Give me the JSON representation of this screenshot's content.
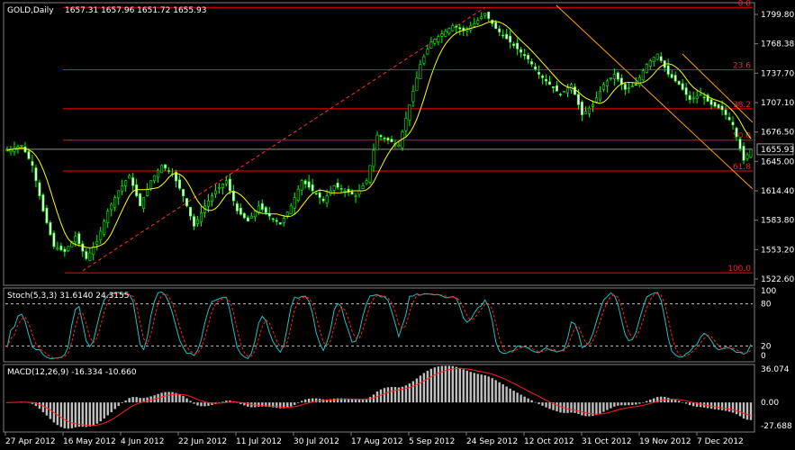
{
  "chart_data": [
    {
      "type": "candlestick",
      "title": "GOLD,Daily",
      "ohlc_readout": "1657.31 1657.96 1651.72 1655.93",
      "last_price": "1655.93",
      "y_ticks": [
        "1799.80",
        "1768.38",
        "1737.70",
        "1707.10",
        "1676.50",
        "1645.00",
        "1614.40",
        "1583.80",
        "1553.20",
        "1522.60"
      ],
      "ylim": [
        1522.6,
        1799.8
      ],
      "x_ticks": [
        "27 Apr 2012",
        "16 May 2012",
        "4 Jun 2012",
        "22 Jun 2012",
        "11 Jul 2012",
        "30 Jul 2012",
        "17 Aug 2012",
        "5 Sep 2012",
        "24 Sep 2012",
        "12 Oct 2012",
        "31 Oct 2012",
        "19 Nov 2012",
        "7 Dec 2012"
      ],
      "fib_levels": [
        {
          "label": "0.0",
          "value": 1796.0
        },
        {
          "label": "23.6",
          "value": 1734.5
        },
        {
          "label": "38.2",
          "value": 1696.0
        },
        {
          "label": "50.0",
          "value": 1665.0
        },
        {
          "label": "61.8",
          "value": 1634.5
        },
        {
          "label": "100.0",
          "value": 1534.0
        }
      ],
      "close_keypoints": [
        [
          0,
          1655
        ],
        [
          4,
          1660
        ],
        [
          7,
          1640
        ],
        [
          10,
          1595
        ],
        [
          13,
          1560
        ],
        [
          16,
          1555
        ],
        [
          19,
          1570
        ],
        [
          22,
          1548
        ],
        [
          25,
          1565
        ],
        [
          28,
          1595
        ],
        [
          31,
          1615
        ],
        [
          34,
          1630
        ],
        [
          37,
          1600
        ],
        [
          40,
          1625
        ],
        [
          43,
          1640
        ],
        [
          46,
          1632
        ],
        [
          49,
          1610
        ],
        [
          52,
          1580
        ],
        [
          55,
          1600
        ],
        [
          58,
          1615
        ],
        [
          61,
          1625
        ],
        [
          64,
          1595
        ],
        [
          67,
          1585
        ],
        [
          70,
          1600
        ],
        [
          73,
          1590
        ],
        [
          76,
          1582
        ],
        [
          79,
          1600
        ],
        [
          82,
          1625
        ],
        [
          85,
          1615
        ],
        [
          88,
          1605
        ],
        [
          91,
          1620
        ],
        [
          94,
          1615
        ],
        [
          97,
          1610
        ],
        [
          100,
          1625
        ],
        [
          103,
          1670
        ],
        [
          106,
          1665
        ],
        [
          109,
          1660
        ],
        [
          112,
          1700
        ],
        [
          115,
          1740
        ],
        [
          118,
          1762
        ],
        [
          121,
          1770
        ],
        [
          124,
          1778
        ],
        [
          127,
          1773
        ],
        [
          130,
          1780
        ],
        [
          133,
          1790
        ],
        [
          136,
          1775
        ],
        [
          139,
          1765
        ],
        [
          142,
          1755
        ],
        [
          145,
          1745
        ],
        [
          148,
          1730
        ],
        [
          151,
          1720
        ],
        [
          154,
          1710
        ],
        [
          157,
          1720
        ],
        [
          160,
          1690
        ],
        [
          163,
          1700
        ],
        [
          166,
          1720
        ],
        [
          169,
          1730
        ],
        [
          172,
          1715
        ],
        [
          175,
          1720
        ],
        [
          178,
          1740
        ],
        [
          181,
          1750
        ],
        [
          184,
          1730
        ],
        [
          187,
          1720
        ],
        [
          190,
          1705
        ],
        [
          193,
          1710
        ],
        [
          196,
          1700
        ],
        [
          199,
          1695
        ],
        [
          202,
          1680
        ],
        [
          205,
          1645
        ],
        [
          207,
          1656
        ]
      ]
    },
    {
      "type": "line",
      "title": "Stoch(5,3,3) 31.6140 24.3155",
      "y_ticks": [
        "100",
        "80",
        "20",
        "0"
      ],
      "ylim": [
        0,
        100
      ],
      "levels": [
        80,
        20
      ],
      "series": [
        {
          "color": "#20c0c0",
          "style": "solid"
        },
        {
          "color": "#ff2020",
          "style": "dashed"
        }
      ]
    },
    {
      "type": "bar",
      "title": "MACD(12,26,9) -16.334 -10.660",
      "y_ticks": [
        "36.074",
        "0.00",
        "-27.688"
      ],
      "ylim": [
        -27.688,
        36.074
      ],
      "series": [
        {
          "color": "#c0c0c0",
          "style": "histogram"
        },
        {
          "color": "#ff2020",
          "style": "signal"
        }
      ]
    }
  ],
  "colors": {
    "background": "#000000",
    "panel_border": "#808080",
    "bull_body": "#000000",
    "bear_body": "#ffffff",
    "candle_wick": "#00ff00",
    "ma": "#ffff00",
    "fib": "#ff0000",
    "trend": "#ffa000"
  }
}
